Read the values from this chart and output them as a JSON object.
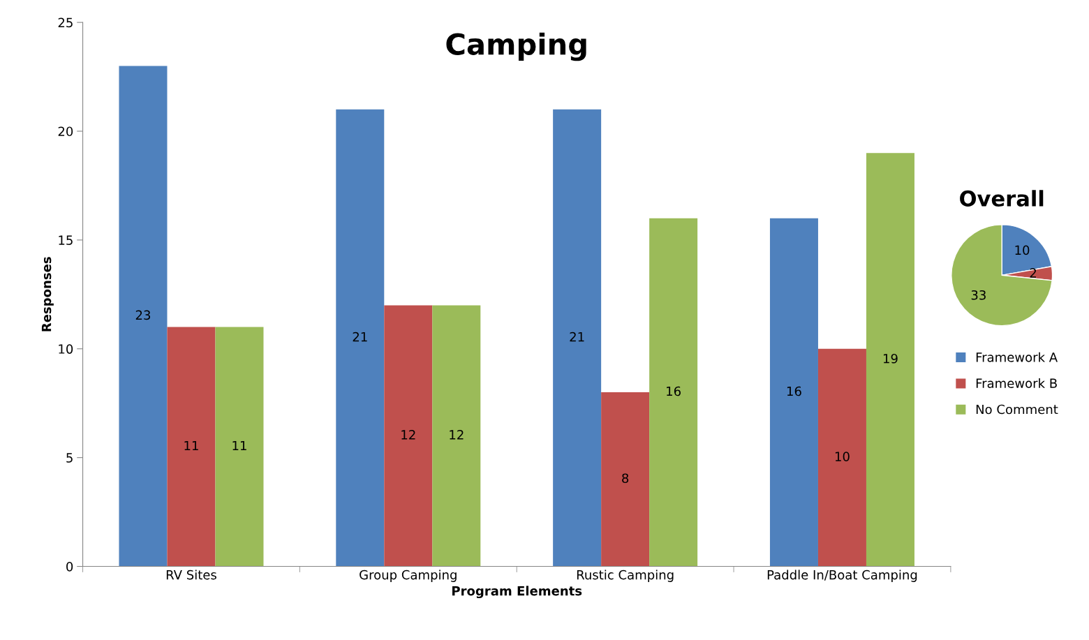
{
  "chart_data": [
    {
      "type": "bar",
      "title": "Camping",
      "xlabel": "Program Elements",
      "ylabel": "Responses",
      "categories": [
        "RV Sites",
        "Group Camping",
        "Rustic Camping",
        "Paddle In/Boat Camping"
      ],
      "series": [
        {
          "color": "#4f81bd",
          "values": [
            23,
            21,
            21,
            16
          ]
        },
        {
          "color": "#c0504d",
          "values": [
            11,
            12,
            8,
            10
          ]
        },
        {
          "color": "#9bbb59",
          "values": [
            11,
            12,
            16,
            19
          ]
        }
      ],
      "ylim": [
        0,
        25
      ],
      "yticks": [
        0,
        5,
        10,
        15,
        20,
        25
      ],
      "grid": false,
      "data_labels": true
    },
    {
      "type": "pie",
      "title": "Overall",
      "categories": [
        "Framework A",
        "Framework B",
        "No Comment"
      ],
      "values": [
        10,
        2,
        33
      ],
      "colors": [
        "#4f81bd",
        "#c0504d",
        "#9bbb59"
      ],
      "legend": "bottom",
      "data_labels": true
    }
  ]
}
